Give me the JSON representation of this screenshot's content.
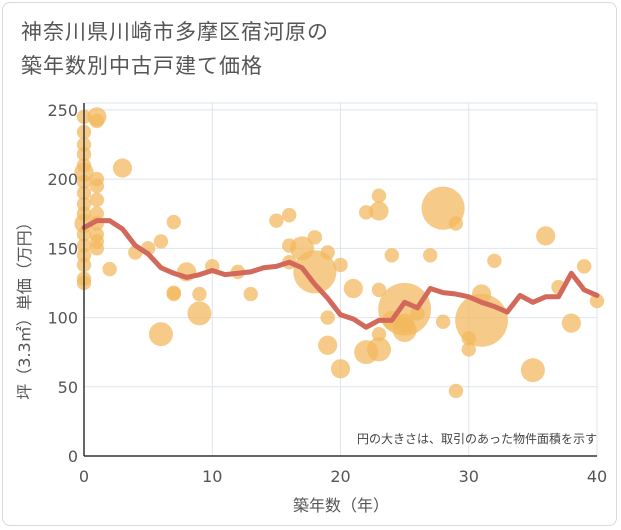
{
  "chart_data": {
    "type": "scatter",
    "title_lines": [
      "神奈川県川崎市多摩区宿河原の",
      "築年数別中古戸建て価格"
    ],
    "xlabel": "築年数（年）",
    "ylabel": "坪（3.3㎡）単価（万円）",
    "note": "円の大きさは、取引のあった物件面積を示す",
    "xlim": [
      0,
      40
    ],
    "ylim": [
      0,
      255
    ],
    "xticks": [
      "0",
      "10",
      "20",
      "30",
      "40"
    ],
    "xtick_values": [
      0,
      10,
      20,
      30,
      40
    ],
    "yticks": [
      "0",
      "50",
      "100",
      "150",
      "200",
      "250"
    ],
    "ytick_values": [
      0,
      50,
      100,
      150,
      200,
      250
    ],
    "colors": {
      "bubble": "#f2b75b",
      "line": "#d2695a",
      "grid": "#dde4ee",
      "axis": "#333333"
    },
    "series": [
      {
        "name": "transactions",
        "kind": "bubble",
        "points": [
          [
            0,
            245,
            3
          ],
          [
            0,
            234,
            3
          ],
          [
            0,
            225,
            3
          ],
          [
            0,
            218,
            3
          ],
          [
            0,
            210,
            3
          ],
          [
            0,
            205,
            4
          ],
          [
            0,
            198,
            3
          ],
          [
            0,
            190,
            3
          ],
          [
            0,
            182,
            3
          ],
          [
            0,
            175,
            3
          ],
          [
            0,
            168,
            4
          ],
          [
            0,
            160,
            3
          ],
          [
            0,
            152,
            3
          ],
          [
            0,
            145,
            3
          ],
          [
            0,
            138,
            3
          ],
          [
            0,
            128,
            3
          ],
          [
            0,
            125,
            3
          ],
          [
            1,
            245,
            4
          ],
          [
            1,
            242,
            3
          ],
          [
            1,
            200,
            3
          ],
          [
            1,
            195,
            3
          ],
          [
            1,
            185,
            3
          ],
          [
            1,
            175,
            3
          ],
          [
            1,
            168,
            3
          ],
          [
            1,
            160,
            3
          ],
          [
            1,
            155,
            3
          ],
          [
            1,
            150,
            3
          ],
          [
            2,
            135,
            3
          ],
          [
            3,
            208,
            4
          ],
          [
            4,
            147,
            3
          ],
          [
            5,
            150,
            3
          ],
          [
            6,
            155,
            3
          ],
          [
            6,
            88,
            5
          ],
          [
            7,
            169,
            3
          ],
          [
            7,
            117,
            3
          ],
          [
            7,
            118,
            3
          ],
          [
            8,
            133,
            4
          ],
          [
            9,
            117,
            3
          ],
          [
            9,
            103,
            5
          ],
          [
            10,
            137,
            3
          ],
          [
            12,
            133,
            3
          ],
          [
            13,
            117,
            3
          ],
          [
            15,
            170,
            3
          ],
          [
            16,
            174,
            3
          ],
          [
            16,
            152,
            3
          ],
          [
            16,
            140,
            3
          ],
          [
            17,
            150,
            5
          ],
          [
            18,
            133,
            9
          ],
          [
            18,
            158,
            3
          ],
          [
            19,
            147,
            3
          ],
          [
            19,
            100,
            3
          ],
          [
            19,
            80,
            4
          ],
          [
            20,
            63,
            4
          ],
          [
            20,
            138,
            3
          ],
          [
            21,
            121,
            4
          ],
          [
            22,
            176,
            3
          ],
          [
            22,
            75,
            5
          ],
          [
            23,
            188,
            3
          ],
          [
            23,
            177,
            4
          ],
          [
            23,
            120,
            3
          ],
          [
            23,
            88,
            3
          ],
          [
            23,
            77,
            5
          ],
          [
            24,
            145,
            3
          ],
          [
            24,
            98,
            4
          ],
          [
            25,
            106,
            11
          ],
          [
            25,
            96,
            4
          ],
          [
            25,
            91,
            5
          ],
          [
            26,
            103,
            3
          ],
          [
            27,
            145,
            3
          ],
          [
            28,
            179,
            9
          ],
          [
            28,
            97,
            3
          ],
          [
            29,
            168,
            3
          ],
          [
            29,
            47,
            3
          ],
          [
            30,
            85,
            3
          ],
          [
            30,
            77,
            3
          ],
          [
            31,
            98,
            11
          ],
          [
            31,
            117,
            4
          ],
          [
            32,
            141,
            3
          ],
          [
            35,
            62,
            5
          ],
          [
            36,
            159,
            4
          ],
          [
            37,
            122,
            3
          ],
          [
            38,
            96,
            4
          ],
          [
            39,
            137,
            3
          ],
          [
            40,
            112,
            3
          ]
        ]
      },
      {
        "name": "average",
        "kind": "line",
        "x": [
          0,
          1,
          2,
          3,
          4,
          5,
          6,
          7,
          8,
          9,
          10,
          11,
          12,
          13,
          14,
          15,
          16,
          17,
          18,
          19,
          20,
          21,
          22,
          23,
          24,
          25,
          26,
          27,
          28,
          29,
          30,
          31,
          32,
          33,
          34,
          35,
          36,
          37,
          38,
          39,
          40
        ],
        "values": [
          165,
          170,
          170,
          164,
          152,
          146,
          136,
          132,
          129,
          131,
          134,
          131,
          132,
          133,
          136,
          137,
          140,
          136,
          124,
          114,
          102,
          99,
          93,
          98,
          98,
          111,
          107,
          121,
          118,
          117,
          115,
          111,
          108,
          104,
          116,
          111,
          115,
          115,
          132,
          120,
          116
        ]
      }
    ]
  }
}
